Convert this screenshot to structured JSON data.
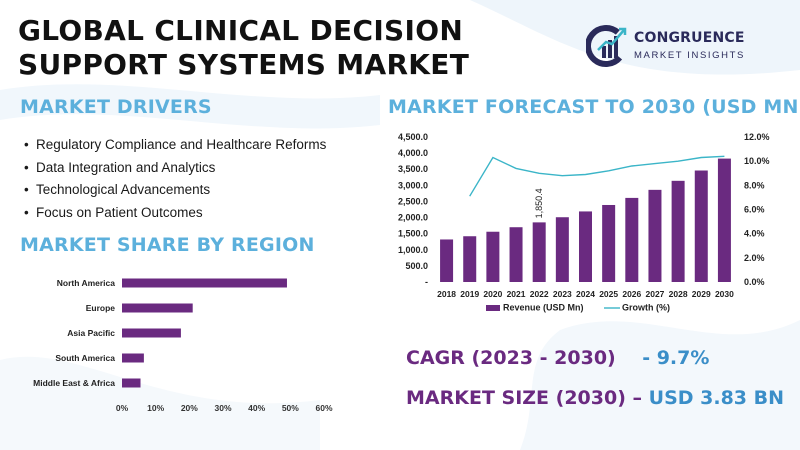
{
  "title": {
    "line1": "GLOBAL CLINICAL DECISION",
    "line2": "SUPPORT SYSTEMS MARKET"
  },
  "brand": {
    "name": "CONGRUENCE",
    "tagline": "MARKET INSIGHTS",
    "icon": "cm-monogram-chart-icon"
  },
  "market_drivers": {
    "heading": "MARKET DRIVERS",
    "items": [
      "Regulatory Compliance and Healthcare Reforms",
      "Data Integration and Analytics",
      "Technological Advancements",
      "Focus on Patient Outcomes"
    ]
  },
  "market_share": {
    "heading": "MARKET SHARE BY REGION"
  },
  "forecast": {
    "heading": "MARKET FORECAST TO 2030 (USD MN)"
  },
  "cagr": {
    "label": "CAGR (2023 - 2030)",
    "value": "- 9.7%"
  },
  "market_size": {
    "label": "MARKET SIZE (2030) –",
    "value": "USD 3.83 BN"
  },
  "colors": {
    "bar": "#6a2a80",
    "growth_line": "#3bb5c8",
    "heading": "#5cb0dc",
    "value": "#3a8ec8"
  },
  "chart_data": [
    {
      "type": "bar",
      "orientation": "horizontal",
      "categories": [
        "North America",
        "Europe",
        "Asia Pacific",
        "South America",
        "Middle East & Africa"
      ],
      "values": [
        49,
        21,
        17.5,
        6.5,
        5.5
      ],
      "xlim": [
        0,
        60
      ],
      "xticks": [
        "0%",
        "10%",
        "20%",
        "30%",
        "40%",
        "50%",
        "60%"
      ],
      "grid": false
    },
    {
      "type": "bar",
      "categories": [
        "2018",
        "2019",
        "2020",
        "2021",
        "2022",
        "2023",
        "2024",
        "2025",
        "2026",
        "2027",
        "2028",
        "2029",
        "2030"
      ],
      "series": [
        {
          "name": "Revenue (USD Mn)",
          "type": "bar",
          "axis": "left",
          "values": [
            1320,
            1420,
            1560,
            1700,
            1850.4,
            2010,
            2190,
            2390,
            2610,
            2860,
            3140,
            3460,
            3830
          ]
        },
        {
          "name": "Growth (%)",
          "type": "line",
          "axis": "right",
          "values": [
            null,
            7.1,
            10.3,
            9.4,
            9.0,
            8.8,
            8.9,
            9.2,
            9.6,
            9.8,
            10.0,
            10.3,
            10.4
          ]
        }
      ],
      "ylim_left": [
        0,
        4500
      ],
      "yticks_left": [
        "-",
        "500.0",
        "1,000.0",
        "1,500.0",
        "2,000.0",
        "2,500.0",
        "3,000.0",
        "3,500.0",
        "4,000.0",
        "4,500.0"
      ],
      "ylim_right": [
        0,
        12
      ],
      "yticks_right": [
        "0.0%",
        "2.0%",
        "4.0%",
        "6.0%",
        "8.0%",
        "10.0%",
        "12.0%"
      ],
      "data_labels": [
        {
          "category": "2022",
          "text": "1,850.4"
        }
      ],
      "legend": [
        "Revenue (USD Mn)",
        "Growth (%)"
      ],
      "legend_position": "bottom",
      "grid": false
    }
  ]
}
